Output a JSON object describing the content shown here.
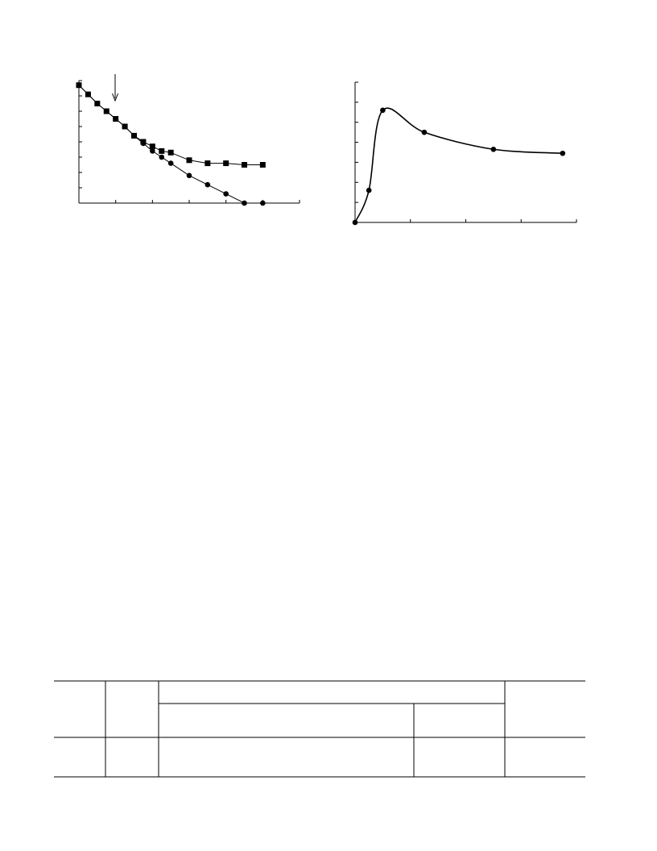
{
  "chart_data": [
    {
      "type": "line",
      "x": [
        0,
        0.25,
        0.5,
        0.75,
        1,
        1.25,
        1.5,
        1.75,
        2,
        2.25,
        2.5,
        3,
        3.5,
        4,
        4.5,
        5
      ],
      "series": [
        {
          "marker": "square",
          "color": "#000000",
          "values": [
            7.7,
            7.1,
            6.5,
            6.0,
            5.5,
            5.0,
            4.4,
            4.0,
            3.7,
            3.4,
            3.3,
            2.8,
            2.6,
            2.6,
            2.5,
            2.5
          ]
        },
        {
          "marker": "circle",
          "color": "#000000",
          "values": [
            7.7,
            7.1,
            6.5,
            6.0,
            5.5,
            5.0,
            4.4,
            3.9,
            3.4,
            3.0,
            2.6,
            1.8,
            1.2,
            0.6,
            0,
            0
          ]
        }
      ],
      "xlim": [
        0,
        6
      ],
      "xticks": [
        0,
        1,
        2,
        3,
        4,
        5,
        6
      ],
      "ylim": [
        0,
        8
      ],
      "yticks": [
        0,
        1,
        2,
        3,
        4,
        5,
        6,
        7,
        8
      ]
    },
    {
      "type": "line",
      "smooth": true,
      "x": [
        0,
        0.25,
        0.5,
        1.25,
        2.5,
        3.75
      ],
      "series": [
        {
          "marker": "circle",
          "color": "#000000",
          "values": [
            0,
            1.6,
            5.6,
            4.5,
            3.65,
            3.45
          ]
        }
      ],
      "xlim": [
        0,
        4
      ],
      "xticks": [
        0,
        1,
        2,
        3,
        4
      ],
      "ylim": [
        0,
        7
      ],
      "yticks": [
        0,
        1,
        2,
        3,
        4,
        5,
        6,
        7
      ]
    }
  ]
}
